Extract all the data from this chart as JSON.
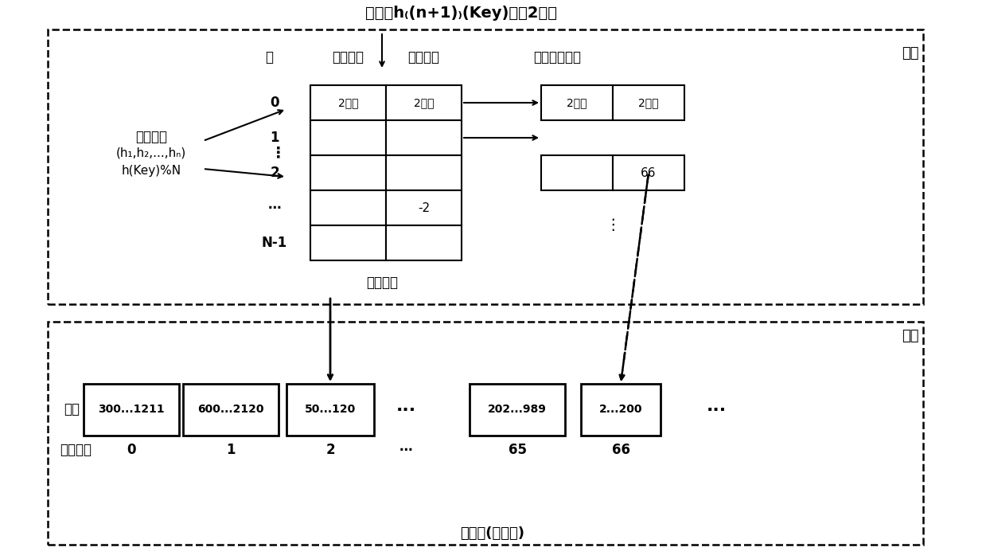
{
  "fig_width": 12.39,
  "fig_height": 7.02,
  "bg_color": "#ffffff",
  "title_text": "哈希値h₍(n+1)₎(Key)的高2字节",
  "memory_label": "内存",
  "disk_label": "磁盘",
  "bucket_label": "桶",
  "key_tag_label": "键値标签",
  "file_num_label": "文件编号",
  "overflow_label": "溢出的索引项",
  "hash_index_label": "哈希索引",
  "cuckoo_line1": "布谷哈希",
  "cuckoo_line2": "(h₁,h₂,...,hₙ)",
  "cuckoo_line3": "h(Key)%N",
  "row_labels": [
    "0",
    "1",
    "2",
    "⋯",
    "N-1"
  ],
  "cell_2byte": "2字节",
  "file_boxes": [
    "300...1211",
    "600...2120",
    "50...120",
    "⋯",
    "202...989",
    "2...200",
    "⋯"
  ],
  "file_nums": [
    "0",
    "1",
    "2",
    "⋯",
    "65",
    "66"
  ],
  "file_label": "文件",
  "file_num_bottom_label": "文件编号",
  "unordered_label": "无序层(追加写)",
  "num_66": "66",
  "num_2": "-2"
}
